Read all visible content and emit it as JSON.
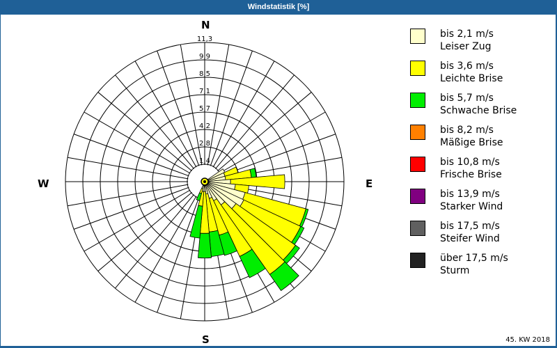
{
  "window": {
    "title": "Windstatistik [%]"
  },
  "compass": {
    "n": "N",
    "e": "E",
    "s": "S",
    "w": "W"
  },
  "footer": {
    "week_label": "45. KW 2018"
  },
  "legend": [
    {
      "range": "bis 2,1 m/s",
      "name": "Leiser Zug",
      "color": "#ffffcc"
    },
    {
      "range": "bis 3,6 m/s",
      "name": "Leichte Brise",
      "color": "#ffff00"
    },
    {
      "range": "bis 5,7 m/s",
      "name": "Schwache Brise",
      "color": "#00ee00"
    },
    {
      "range": "bis 8,2 m/s",
      "name": "Mäßige Brise",
      "color": "#ff8000"
    },
    {
      "range": "bis 10,8 m/s",
      "name": "Frische Brise",
      "color": "#ff0000"
    },
    {
      "range": "bis 13,9 m/s",
      "name": "Starker Wind",
      "color": "#800080"
    },
    {
      "range": "bis 17,5 m/s",
      "name": "Steifer Wind",
      "color": "#606060"
    },
    {
      "range": "über 17,5 m/s",
      "name": "Sturm",
      "color": "#222222"
    }
  ],
  "chart_data": {
    "type": "polar-bar (wind rose)",
    "title": "Windstatistik [%]",
    "subtitle": "45. KW 2018",
    "radial_unit": "%",
    "radial_ticks": [
      "1,4",
      "2,8",
      "4,2",
      "5,7",
      "7,1",
      "8,5",
      "9,9",
      "11,3"
    ],
    "rmax": 11.3,
    "direction_labels": [
      "N",
      "E",
      "S",
      "W"
    ],
    "sector_width_deg": 10,
    "series_names": [
      "bis 2,1 m/s",
      "bis 3,6 m/s",
      "bis 5,7 m/s"
    ],
    "series_colors": [
      "#ffffcc",
      "#ffff00",
      "#00ee00"
    ],
    "note": "values are cumulative stacked radius in % per direction (compass degrees)",
    "directions": [
      {
        "deg": 60,
        "cumulative": [
          1.8,
          1.8,
          1.8
        ]
      },
      {
        "deg": 70,
        "cumulative": [
          1.7,
          2.8,
          2.8
        ]
      },
      {
        "deg": 80,
        "cumulative": [
          1.7,
          3.8,
          4.2
        ]
      },
      {
        "deg": 90,
        "cumulative": [
          2.1,
          6.5,
          6.5
        ]
      },
      {
        "deg": 100,
        "cumulative": [
          2.5,
          3.6,
          3.6
        ]
      },
      {
        "deg": 110,
        "cumulative": [
          3.4,
          8.5,
          8.7
        ]
      },
      {
        "deg": 120,
        "cumulative": [
          3.5,
          8.6,
          8.9
        ]
      },
      {
        "deg": 130,
        "cumulative": [
          3.1,
          9.0,
          9.4
        ]
      },
      {
        "deg": 140,
        "cumulative": [
          2.3,
          9.2,
          10.8
        ]
      },
      {
        "deg": 150,
        "cumulative": [
          1.7,
          6.7,
          8.6
        ]
      },
      {
        "deg": 160,
        "cumulative": [
          1.4,
          4.5,
          6.2
        ]
      },
      {
        "deg": 170,
        "cumulative": [
          1.0,
          4.1,
          6.1
        ]
      },
      {
        "deg": 180,
        "cumulative": [
          0.8,
          4.2,
          6.2
        ]
      },
      {
        "deg": 190,
        "cumulative": [
          0.8,
          2.0,
          4.6
        ]
      },
      {
        "deg": 200,
        "cumulative": [
          0.6,
          1.0,
          1.6
        ]
      }
    ]
  }
}
